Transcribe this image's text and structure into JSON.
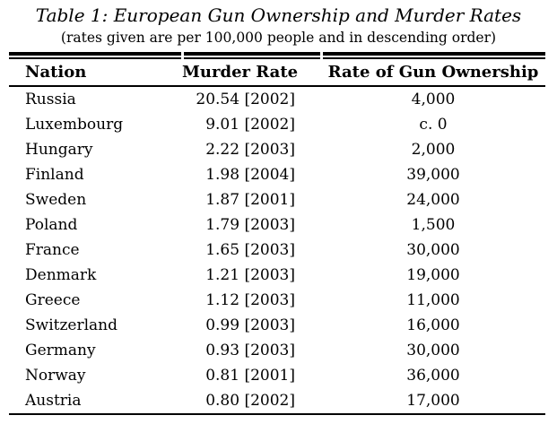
{
  "page": {
    "title": "Table 1: European Gun Ownership and Murder Rates",
    "subtitle": "(rates given are per 100,000 people and in descending order)"
  },
  "table": {
    "columns": [
      "Nation",
      "Murder Rate",
      "Rate of Gun Ownership"
    ],
    "rows": [
      {
        "nation": "Russia",
        "murder_rate": "20.54 [2002]",
        "gun_ownership": "4,000"
      },
      {
        "nation": "Luxembourg",
        "murder_rate": "9.01 [2002]",
        "gun_ownership": "c. 0"
      },
      {
        "nation": "Hungary",
        "murder_rate": "2.22 [2003]",
        "gun_ownership": "2,000"
      },
      {
        "nation": "Finland",
        "murder_rate": "1.98 [2004]",
        "gun_ownership": "39,000"
      },
      {
        "nation": "Sweden",
        "murder_rate": "1.87 [2001]",
        "gun_ownership": "24,000"
      },
      {
        "nation": "Poland",
        "murder_rate": "1.79 [2003]",
        "gun_ownership": "1,500"
      },
      {
        "nation": "France",
        "murder_rate": "1.65 [2003]",
        "gun_ownership": "30,000"
      },
      {
        "nation": "Denmark",
        "murder_rate": "1.21 [2003]",
        "gun_ownership": "19,000"
      },
      {
        "nation": "Greece",
        "murder_rate": "1.12 [2003]",
        "gun_ownership": "11,000"
      },
      {
        "nation": "Switzerland",
        "murder_rate": "0.99 [2003]",
        "gun_ownership": "16,000"
      },
      {
        "nation": "Germany",
        "murder_rate": "0.93 [2003]",
        "gun_ownership": "30,000"
      },
      {
        "nation": "Norway",
        "murder_rate": "0.81 [2001]",
        "gun_ownership": "36,000"
      },
      {
        "nation": "Austria",
        "murder_rate": "0.80 [2002]",
        "gun_ownership": "17,000"
      }
    ]
  },
  "colors": {
    "text": "#000000",
    "rule": "#000000",
    "background": "#ffffff"
  }
}
